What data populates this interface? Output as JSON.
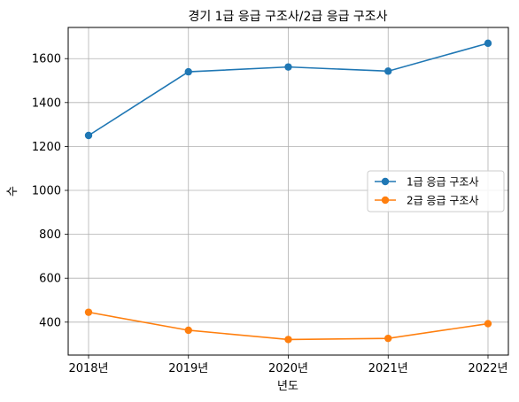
{
  "chart_data": {
    "type": "line",
    "title": "경기 1급 응급 구조사/2급 응급 구조사",
    "xlabel": "년도",
    "ylabel": "수",
    "categories": [
      "2018년",
      "2019년",
      "2020년",
      "2021년",
      "2022년"
    ],
    "series": [
      {
        "name": "1급 응급 구조사",
        "color": "#1f77b4",
        "values": [
          1250,
          1540,
          1562,
          1543,
          1670
        ]
      },
      {
        "name": "2급 응급 구조사",
        "color": "#ff7f0e",
        "values": [
          445,
          363,
          321,
          326,
          393
        ]
      }
    ],
    "ylim": [
      250,
      1742
    ],
    "yticks": [
      400,
      600,
      800,
      1000,
      1200,
      1400,
      1600
    ],
    "grid": true,
    "legend_position": "center-right"
  }
}
